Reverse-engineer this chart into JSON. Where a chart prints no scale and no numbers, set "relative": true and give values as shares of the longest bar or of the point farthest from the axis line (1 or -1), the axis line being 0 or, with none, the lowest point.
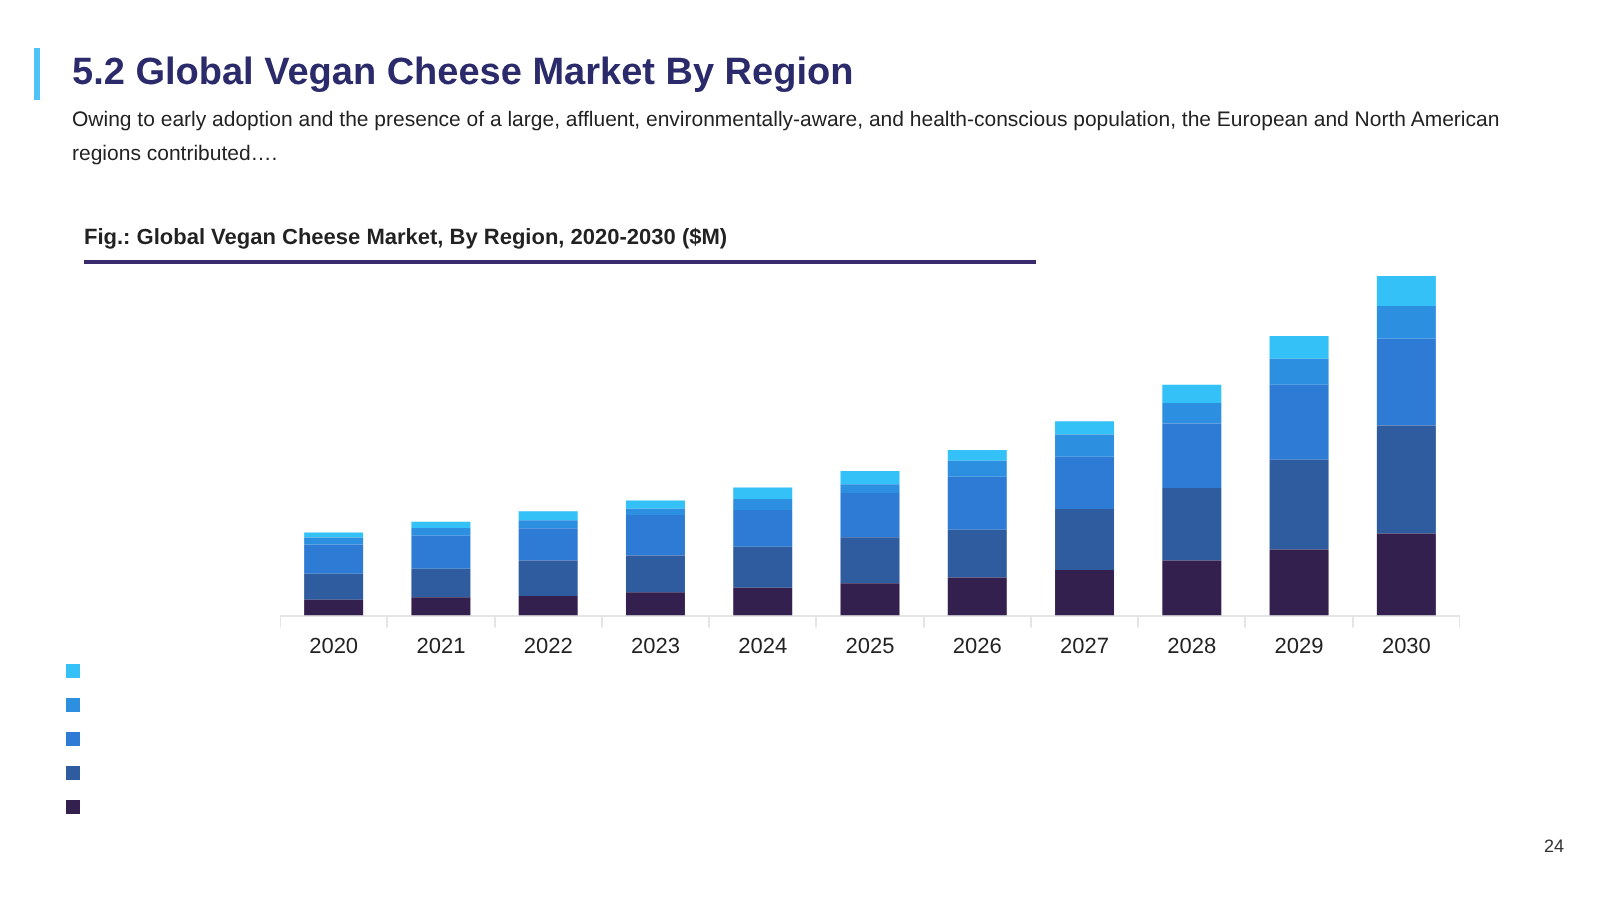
{
  "chart_data": {
    "type": "bar",
    "title": "5.2 Global Vegan Cheese Market By Region",
    "subtitle": "Owing to early adoption and the presence of a large, affluent, environmentally-aware, and health-conscious population, the European and North American regions contributed….",
    "annotations": [
      "Fig.: Global Vegan Cheese Market, By Region, 2020-2030 ($M)",
      "24"
    ],
    "categories": [
      "2020",
      "2021",
      "2022",
      "2023",
      "2024",
      "2025",
      "2026",
      "2027",
      "2028",
      "2029",
      "2030"
    ],
    "stacked": true,
    "relative": true,
    "series": [
      {
        "color": "#33204f",
        "values": [
          0.047,
          0.054,
          0.058,
          0.069,
          0.082,
          0.095,
          0.112,
          0.134,
          0.162,
          0.195,
          0.242
        ]
      },
      {
        "color": "#2f5b9f",
        "values": [
          0.076,
          0.084,
          0.104,
          0.108,
          0.121,
          0.136,
          0.141,
          0.18,
          0.214,
          0.264,
          0.318
        ]
      },
      {
        "color": "#2e7bd6",
        "values": [
          0.086,
          0.097,
          0.095,
          0.119,
          0.108,
          0.13,
          0.156,
          0.154,
          0.19,
          0.221,
          0.255
        ]
      },
      {
        "color": "#2d8fe0",
        "values": [
          0.021,
          0.023,
          0.024,
          0.019,
          0.032,
          0.026,
          0.047,
          0.065,
          0.06,
          0.076,
          0.097
        ]
      },
      {
        "color": "#33c1f7",
        "values": [
          0.015,
          0.018,
          0.026,
          0.024,
          0.034,
          0.039,
          0.032,
          0.039,
          0.054,
          0.067,
          0.088
        ]
      }
    ],
    "legend": false
  }
}
